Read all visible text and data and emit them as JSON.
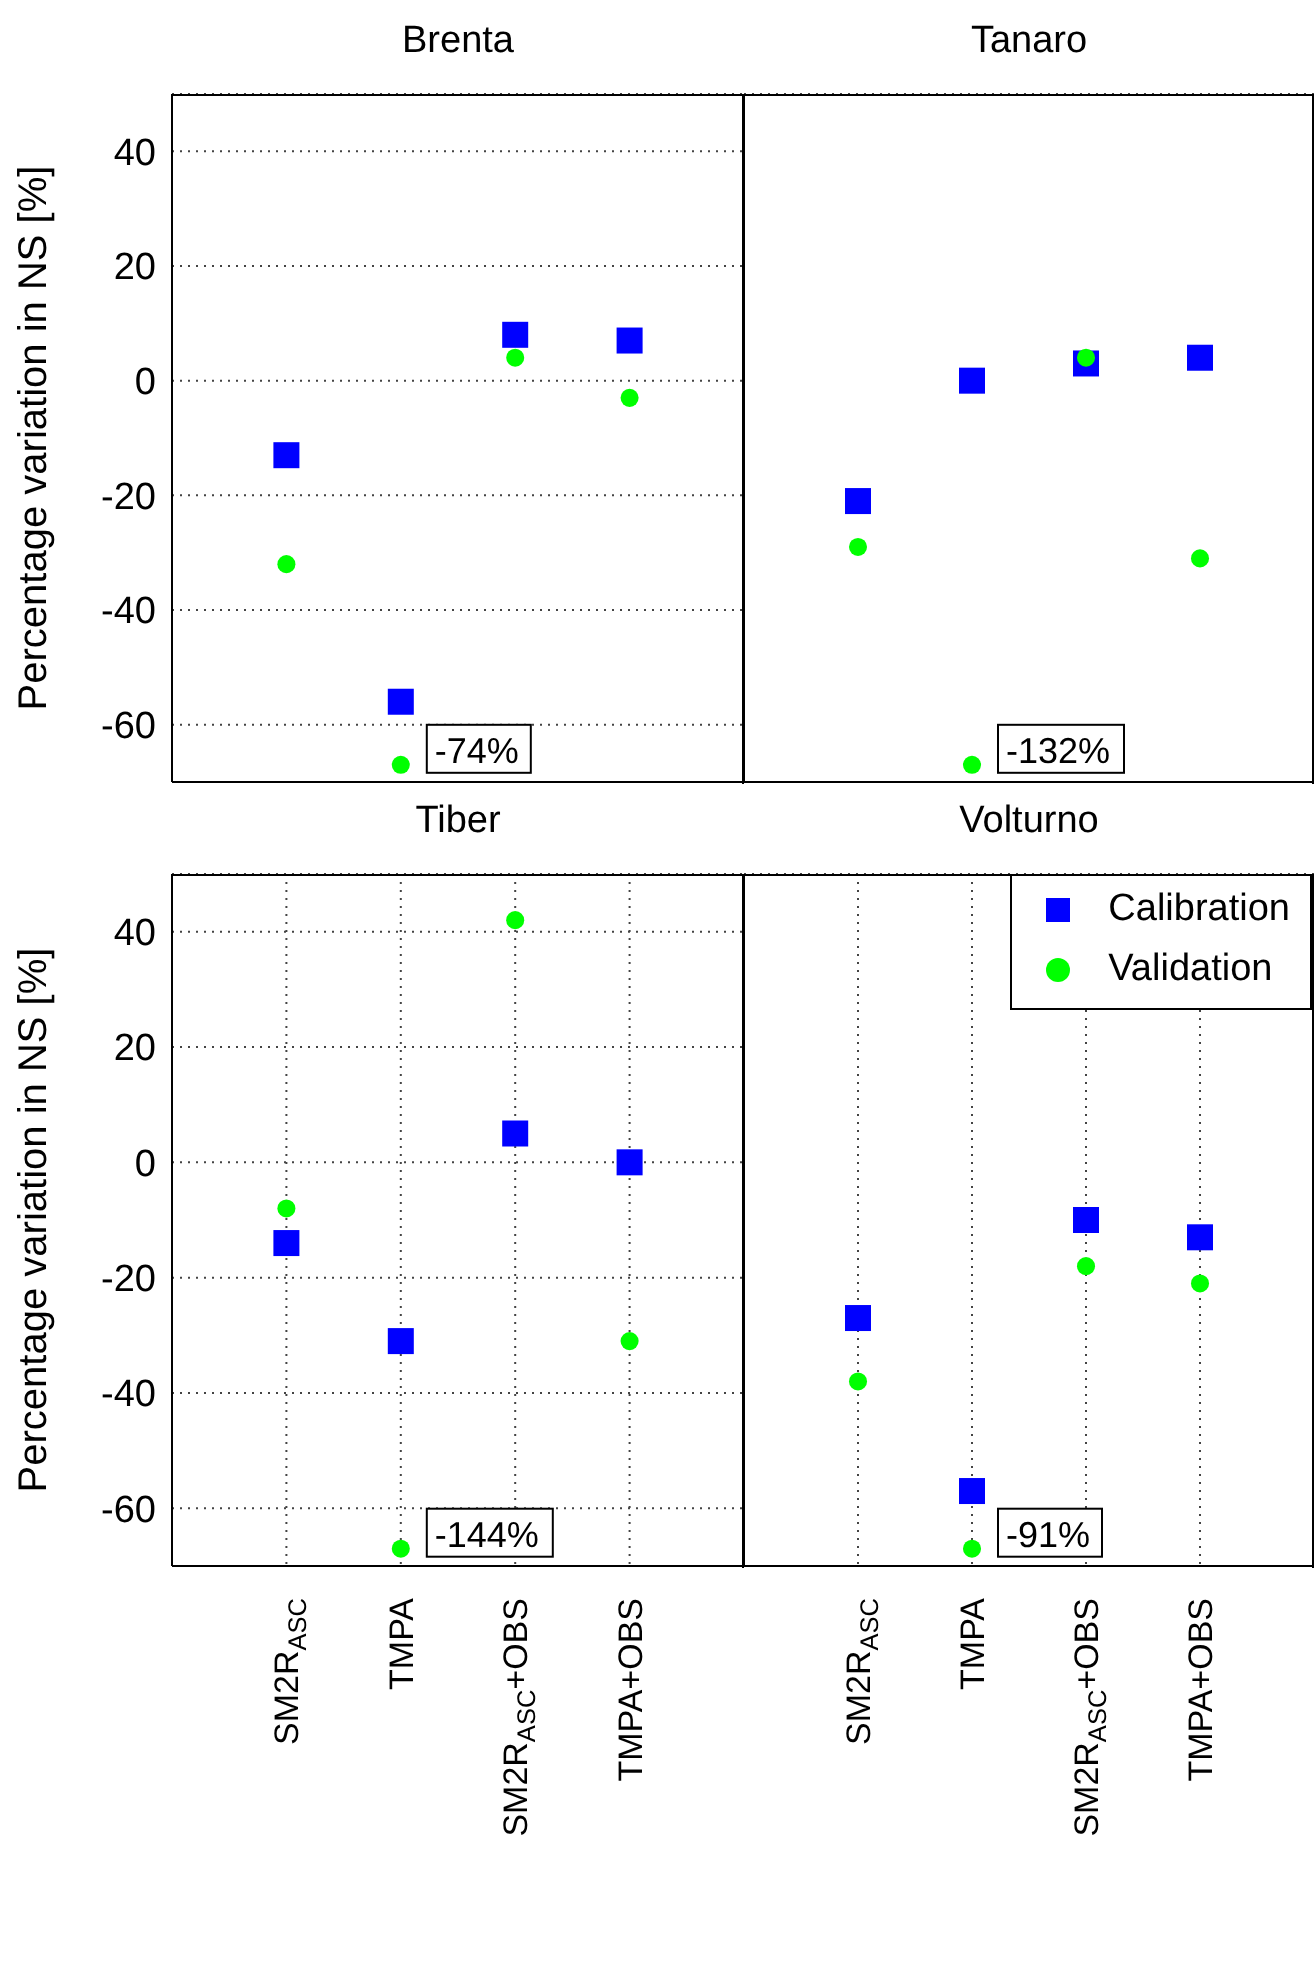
{
  "chart_data": [
    {
      "type": "scatter",
      "title": "Brenta",
      "ylabel": "Percentage variation in NS [%]",
      "categories": [
        "SM2R$_{ASC}$",
        "TMPA",
        "SM2R$_{ASC}$+OBS",
        "TMPA+OBS"
      ],
      "ylim": [
        -70,
        50
      ],
      "yticks": [
        -60,
        -40,
        -20,
        0,
        20,
        40
      ],
      "grid": true,
      "tick_labels": "y",
      "annotations": [
        {
          "text": "-74%",
          "x": "TMPA",
          "y": -67
        }
      ],
      "series": [
        {
          "color": "#0000ff",
          "marker": "square",
          "values": [
            -13,
            -56,
            8,
            7
          ]
        },
        {
          "color": "#00ff00",
          "marker": "circle",
          "values": [
            -32,
            -67,
            4,
            -3
          ]
        }
      ]
    },
    {
      "type": "scatter",
      "title": "Tanaro",
      "categories": [
        "SM2R$_{ASC}$",
        "TMPA",
        "SM2R$_{ASC}$+OBS",
        "TMPA+OBS"
      ],
      "ylim": [
        -70,
        50
      ],
      "yticks": [
        -60,
        -40,
        -20,
        0,
        20,
        40
      ],
      "grid": true,
      "tick_labels": false,
      "annotations": [
        {
          "text": "-132%",
          "x": "TMPA",
          "y": -67
        }
      ],
      "series": [
        {
          "color": "#0000ff",
          "marker": "square",
          "values": [
            -21,
            0,
            3,
            4
          ]
        },
        {
          "color": "#00ff00",
          "marker": "circle",
          "values": [
            -29,
            -67,
            4,
            -31
          ]
        }
      ]
    },
    {
      "type": "scatter",
      "title": "Tiber",
      "ylabel": "Percentage variation in NS [%]",
      "categories": [
        "SM2R$_{ASC}$",
        "TMPA",
        "SM2R$_{ASC}$+OBS",
        "TMPA+OBS"
      ],
      "ylim": [
        -70,
        50
      ],
      "yticks": [
        -60,
        -40,
        -20,
        0,
        20,
        40
      ],
      "grid": true,
      "annotations": [
        {
          "text": "-144%",
          "x": "TMPA",
          "y": -67
        }
      ],
      "series": [
        {
          "color": "#0000ff",
          "marker": "square",
          "values": [
            -14,
            -31,
            5,
            0
          ]
        },
        {
          "color": "#00ff00",
          "marker": "circle",
          "values": [
            -8,
            -67,
            42,
            -31
          ]
        }
      ]
    },
    {
      "type": "scatter",
      "title": "Volturno",
      "categories": [
        "SM2R$_{ASC}$",
        "TMPA",
        "SM2R$_{ASC}$+OBS",
        "TMPA+OBS"
      ],
      "ylim": [
        -70,
        50
      ],
      "yticks": [
        -60,
        -40,
        -20,
        0,
        20,
        40
      ],
      "grid": true,
      "tick_labels": "x",
      "legend": "top right",
      "annotations": [
        {
          "text": "-91%",
          "x": "TMPA",
          "y": -67
        }
      ],
      "series": [
        {
          "name": "Calibration",
          "color": "#0000ff",
          "marker": "square",
          "values": [
            -27,
            -57,
            -10,
            -13
          ]
        },
        {
          "name": "Validation",
          "color": "#00ff00",
          "marker": "circle",
          "values": [
            -38,
            -67,
            -18,
            -21
          ]
        }
      ]
    }
  ]
}
